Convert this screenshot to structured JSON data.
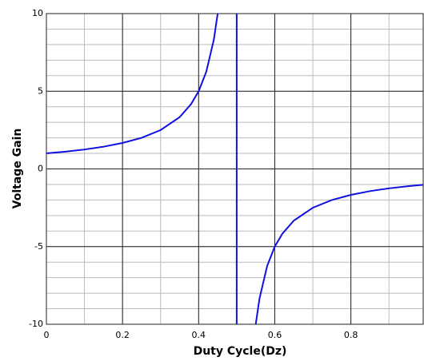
{
  "chart_data": {
    "type": "line",
    "x_label": "Duty Cycle(Dz)",
    "y_label": "Voltage Gain",
    "x": [
      0,
      0.05,
      0.1,
      0.15,
      0.2,
      0.25,
      0.3,
      0.35,
      0.38,
      0.4,
      0.42,
      0.44,
      0.45,
      0.475,
      0.5,
      0.5,
      0.525,
      0.55,
      0.56,
      0.58,
      0.6,
      0.62,
      0.65,
      0.7,
      0.75,
      0.8,
      0.85,
      0.9,
      0.95,
      0.99
    ],
    "series": [
      {
        "name": "Voltage Gain",
        "color": "#1010e0",
        "values": [
          1,
          1.11,
          1.25,
          1.43,
          1.67,
          2,
          2.5,
          3.33,
          4.17,
          5,
          6.25,
          8.33,
          10,
          null,
          10,
          -10,
          null,
          -10,
          -8.33,
          -6.25,
          -5,
          -4.17,
          -3.33,
          -2.5,
          -2,
          -1.67,
          -1.43,
          -1.25,
          -1.11,
          -1.02
        ]
      }
    ],
    "xlim": [
      0,
      0.99
    ],
    "xticks": [
      0,
      0.2,
      0.4,
      0.6,
      0.8
    ],
    "ylim": [
      -10,
      10
    ],
    "yticks": [
      -10,
      -5,
      0,
      5,
      10
    ],
    "grid": true
  }
}
